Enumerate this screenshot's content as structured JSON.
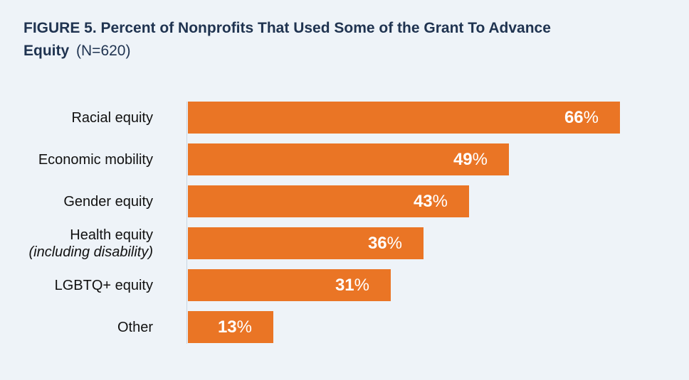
{
  "title": {
    "main": "FIGURE 5. Percent of Nonprofits That Used Some of the Grant To Advance Equity",
    "note": "(N=620)"
  },
  "chart_data": {
    "type": "bar",
    "orientation": "horizontal",
    "title": "FIGURE 5. Percent of Nonprofits That Used Some of the Grant To Advance Equity (N=620)",
    "categories": [
      "Racial equity",
      "Economic mobility",
      "Gender equity",
      "Health equity (including disability)",
      "LGBTQ+ equity",
      "Other"
    ],
    "values": [
      66,
      49,
      43,
      36,
      31,
      13
    ],
    "value_suffix": "%",
    "xlim": [
      0,
      66
    ],
    "grid": false,
    "legend": "none",
    "bar_color": "#ea7525",
    "label_color": "#111111",
    "value_text_color": "#ffffff",
    "rows": [
      {
        "label": "Racial equity",
        "note": "",
        "value": 66,
        "display": "66",
        "suffix": "%"
      },
      {
        "label": "Economic mobility",
        "note": "",
        "value": 49,
        "display": "49",
        "suffix": "%"
      },
      {
        "label": "Gender equity",
        "note": "",
        "value": 43,
        "display": "43",
        "suffix": "%"
      },
      {
        "label": "Health equity",
        "note": "(including disability)",
        "value": 36,
        "display": "36",
        "suffix": "%"
      },
      {
        "label": "LGBTQ+ equity",
        "note": "",
        "value": 31,
        "display": "31",
        "suffix": "%"
      },
      {
        "label": "Other",
        "note": "",
        "value": 13,
        "display": "13",
        "suffix": "%"
      }
    ]
  },
  "colors": {
    "background": "#eef3f8",
    "title": "#1f3350",
    "axis": "#c9d5e2"
  }
}
